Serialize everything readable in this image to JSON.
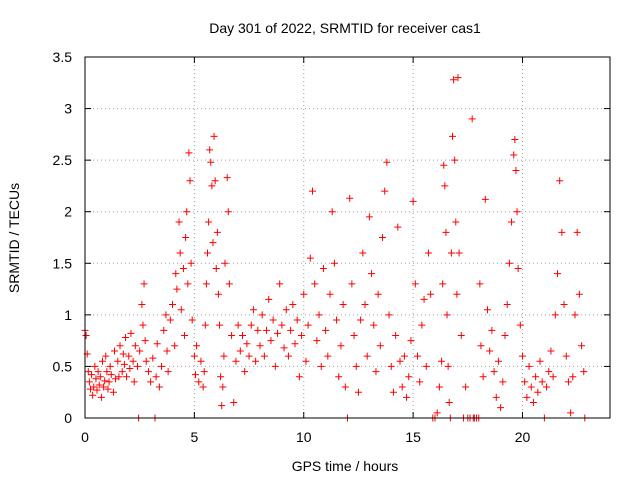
{
  "chart_data": {
    "type": "scatter",
    "title": "Day 301 of 2022, SRMTID for receiver cas1",
    "xlabel": "GPS time / hours",
    "ylabel": "SRMTID / TECUs",
    "xlim": [
      0,
      24
    ],
    "ylim": [
      0,
      3.5
    ],
    "xticks": [
      0,
      5,
      10,
      15,
      20
    ],
    "xtick_labels": [
      "0",
      "5",
      "10",
      "15",
      "20"
    ],
    "yticks": [
      0,
      0.5,
      1,
      1.5,
      2,
      2.5,
      3,
      3.5
    ],
    "ytick_labels": [
      "0",
      "0.5",
      "1",
      "1.5",
      "2",
      "2.5",
      "3",
      "3.5"
    ],
    "grid": true,
    "marker": "+",
    "color": "#ff0000",
    "series": [
      {
        "name": "cas1",
        "points": [
          [
            0.0,
            0.85
          ],
          [
            0.05,
            0.8
          ],
          [
            0.1,
            0.62
          ],
          [
            0.15,
            0.45
          ],
          [
            0.2,
            0.35
          ],
          [
            0.25,
            0.28
          ],
          [
            0.3,
            0.42
          ],
          [
            0.35,
            0.22
          ],
          [
            0.4,
            0.3
          ],
          [
            0.45,
            0.5
          ],
          [
            0.5,
            0.38
          ],
          [
            0.55,
            0.27
          ],
          [
            0.6,
            0.45
          ],
          [
            0.65,
            0.32
          ],
          [
            0.7,
            0.4
          ],
          [
            0.75,
            0.2
          ],
          [
            0.8,
            0.55
          ],
          [
            0.85,
            0.3
          ],
          [
            0.9,
            0.36
          ],
          [
            0.95,
            0.6
          ],
          [
            1.0,
            0.45
          ],
          [
            1.05,
            0.28
          ],
          [
            1.1,
            0.35
          ],
          [
            1.15,
            0.5
          ],
          [
            1.2,
            0.42
          ],
          [
            1.3,
            0.25
          ],
          [
            1.35,
            0.65
          ],
          [
            1.4,
            0.38
          ],
          [
            1.5,
            0.55
          ],
          [
            1.55,
            0.4
          ],
          [
            1.6,
            0.7
          ],
          [
            1.7,
            0.45
          ],
          [
            1.75,
            0.62
          ],
          [
            1.8,
            0.52
          ],
          [
            1.85,
            0.78
          ],
          [
            1.9,
            0.4
          ],
          [
            2.0,
            0.6
          ],
          [
            2.05,
            0.48
          ],
          [
            2.1,
            0.82
          ],
          [
            2.2,
            0.55
          ],
          [
            2.25,
            0.35
          ],
          [
            2.3,
            0.7
          ],
          [
            2.4,
            0.5
          ],
          [
            2.45,
            0.0
          ],
          [
            2.5,
            0.65
          ],
          [
            2.6,
            1.1
          ],
          [
            2.65,
            0.9
          ],
          [
            2.7,
            1.3
          ],
          [
            2.75,
            0.75
          ],
          [
            2.8,
            0.55
          ],
          [
            2.9,
            0.45
          ],
          [
            3.0,
            0.35
          ],
          [
            3.1,
            0.58
          ],
          [
            3.2,
            0.0
          ],
          [
            3.25,
            0.4
          ],
          [
            3.3,
            0.72
          ],
          [
            3.4,
            0.3
          ],
          [
            3.5,
            0.5
          ],
          [
            3.6,
            0.85
          ],
          [
            3.7,
            1.0
          ],
          [
            3.75,
            0.65
          ],
          [
            3.8,
            0.45
          ],
          [
            3.9,
            0.95
          ],
          [
            4.0,
            1.1
          ],
          [
            4.1,
            0.7
          ],
          [
            4.15,
            1.4
          ],
          [
            4.2,
            1.25
          ],
          [
            4.3,
            1.9
          ],
          [
            4.35,
            1.6
          ],
          [
            4.4,
            1.05
          ],
          [
            4.5,
            1.45
          ],
          [
            4.55,
            0.8
          ],
          [
            4.6,
            1.75
          ],
          [
            4.65,
            2.0
          ],
          [
            4.7,
            1.3
          ],
          [
            4.75,
            2.57
          ],
          [
            4.8,
            2.3
          ],
          [
            4.85,
            1.5
          ],
          [
            4.9,
            0.95
          ],
          [
            5.0,
            0.6
          ],
          [
            5.05,
            0.42
          ],
          [
            5.1,
            0.7
          ],
          [
            5.2,
            0.35
          ],
          [
            5.3,
            0.55
          ],
          [
            5.4,
            0.3
          ],
          [
            5.45,
            0.45
          ],
          [
            5.5,
            0.9
          ],
          [
            5.55,
            1.3
          ],
          [
            5.6,
            1.6
          ],
          [
            5.65,
            1.9
          ],
          [
            5.7,
            2.6
          ],
          [
            5.75,
            2.48
          ],
          [
            5.8,
            2.25
          ],
          [
            5.85,
            1.7
          ],
          [
            5.9,
            2.73
          ],
          [
            5.95,
            2.3
          ],
          [
            6.0,
            1.45
          ],
          [
            6.05,
            1.8
          ],
          [
            6.1,
            1.2
          ],
          [
            6.15,
            0.9
          ],
          [
            6.2,
            0.4
          ],
          [
            6.25,
            0.12
          ],
          [
            6.3,
            0.3
          ],
          [
            6.35,
            0.6
          ],
          [
            6.4,
            1.5
          ],
          [
            6.5,
            2.33
          ],
          [
            6.55,
            2.0
          ],
          [
            6.6,
            1.3
          ],
          [
            6.7,
            0.8
          ],
          [
            6.8,
            0.15
          ],
          [
            6.9,
            0.55
          ],
          [
            7.0,
            0.9
          ],
          [
            7.1,
            0.65
          ],
          [
            7.2,
            0.8
          ],
          [
            7.3,
            0.45
          ],
          [
            7.4,
            0.72
          ],
          [
            7.5,
            0.6
          ],
          [
            7.6,
            0.9
          ],
          [
            7.7,
            1.05
          ],
          [
            7.8,
            0.55
          ],
          [
            7.9,
            0.85
          ],
          [
            8.0,
            0.7
          ],
          [
            8.1,
            1.0
          ],
          [
            8.2,
            0.6
          ],
          [
            8.3,
            0.85
          ],
          [
            8.4,
            1.15
          ],
          [
            8.5,
            0.75
          ],
          [
            8.6,
            0.95
          ],
          [
            8.7,
            0.5
          ],
          [
            8.8,
            0.82
          ],
          [
            8.9,
            1.3
          ],
          [
            9.0,
            0.9
          ],
          [
            9.1,
            0.68
          ],
          [
            9.2,
            1.05
          ],
          [
            9.3,
            0.6
          ],
          [
            9.4,
            0.85
          ],
          [
            9.5,
            1.1
          ],
          [
            9.6,
            0.72
          ],
          [
            9.7,
            0.95
          ],
          [
            9.8,
            0.4
          ],
          [
            9.9,
            0.8
          ],
          [
            10.0,
            1.2
          ],
          [
            10.1,
            0.55
          ],
          [
            10.2,
            0.9
          ],
          [
            10.3,
            1.55
          ],
          [
            10.4,
            2.2
          ],
          [
            10.5,
            1.3
          ],
          [
            10.6,
            0.75
          ],
          [
            10.7,
            1.0
          ],
          [
            10.8,
            0.5
          ],
          [
            10.9,
            1.45
          ],
          [
            11.0,
            0.85
          ],
          [
            11.1,
            0.6
          ],
          [
            11.2,
            1.2
          ],
          [
            11.3,
            2.0
          ],
          [
            11.4,
            1.5
          ],
          [
            11.5,
            0.95
          ],
          [
            11.6,
            0.4
          ],
          [
            11.7,
            0.7
          ],
          [
            11.8,
            1.1
          ],
          [
            11.9,
            0.3
          ],
          [
            12.0,
            0.0
          ],
          [
            12.1,
            2.13
          ],
          [
            12.2,
            1.3
          ],
          [
            12.3,
            0.8
          ],
          [
            12.4,
            0.5
          ],
          [
            12.5,
            0.25
          ],
          [
            12.6,
            0.95
          ],
          [
            12.7,
            1.6
          ],
          [
            12.8,
            1.1
          ],
          [
            12.9,
            0.6
          ],
          [
            13.0,
            1.95
          ],
          [
            13.1,
            1.4
          ],
          [
            13.2,
            0.9
          ],
          [
            13.3,
            0.45
          ],
          [
            13.4,
            1.2
          ],
          [
            13.5,
            0.7
          ],
          [
            13.6,
            1.75
          ],
          [
            13.7,
            2.2
          ],
          [
            13.8,
            2.48
          ],
          [
            13.9,
            1.0
          ],
          [
            14.0,
            0.5
          ],
          [
            14.1,
            0.25
          ],
          [
            14.2,
            0.8
          ],
          [
            14.3,
            1.85
          ],
          [
            14.4,
            0.55
          ],
          [
            14.5,
            0.3
          ],
          [
            14.6,
            0.6
          ],
          [
            14.7,
            0.2
          ],
          [
            14.8,
            0.4
          ],
          [
            14.9,
            0.75
          ],
          [
            15.0,
            2.1
          ],
          [
            15.1,
            1.3
          ],
          [
            15.2,
            0.6
          ],
          [
            15.3,
            0.35
          ],
          [
            15.4,
            0.9
          ],
          [
            15.5,
            1.15
          ],
          [
            15.6,
            0.5
          ],
          [
            15.7,
            1.6
          ],
          [
            15.8,
            1.2
          ],
          [
            15.9,
            0.0
          ],
          [
            16.0,
            0.0
          ],
          [
            16.1,
            0.05
          ],
          [
            16.2,
            0.3
          ],
          [
            16.3,
            0.55
          ],
          [
            16.35,
            1.3
          ],
          [
            16.4,
            2.45
          ],
          [
            16.45,
            2.25
          ],
          [
            16.5,
            1.8
          ],
          [
            16.55,
            1.0
          ],
          [
            16.6,
            0.5
          ],
          [
            16.65,
            0.15
          ],
          [
            16.7,
            0.0
          ],
          [
            16.75,
            1.6
          ],
          [
            16.8,
            2.73
          ],
          [
            16.85,
            3.28
          ],
          [
            16.9,
            2.5
          ],
          [
            16.95,
            1.9
          ],
          [
            17.0,
            1.2
          ],
          [
            17.05,
            3.3
          ],
          [
            17.1,
            1.6
          ],
          [
            17.2,
            0.8
          ],
          [
            17.3,
            0.0
          ],
          [
            17.4,
            0.3
          ],
          [
            17.5,
            0.0
          ],
          [
            17.6,
            0.0
          ],
          [
            17.7,
            2.9
          ],
          [
            17.75,
            0.0
          ],
          [
            17.8,
            0.0
          ],
          [
            17.9,
            0.0
          ],
          [
            18.0,
            0.0
          ],
          [
            18.05,
            1.3
          ],
          [
            18.1,
            0.7
          ],
          [
            18.2,
            0.4
          ],
          [
            18.3,
            2.12
          ],
          [
            18.4,
            1.05
          ],
          [
            18.5,
            0.65
          ],
          [
            18.6,
            0.85
          ],
          [
            18.7,
            0.45
          ],
          [
            18.8,
            0.2
          ],
          [
            18.9,
            0.55
          ],
          [
            19.0,
            0.1
          ],
          [
            19.1,
            0.35
          ],
          [
            19.2,
            0.8
          ],
          [
            19.3,
            1.1
          ],
          [
            19.4,
            1.5
          ],
          [
            19.5,
            1.9
          ],
          [
            19.6,
            2.55
          ],
          [
            19.65,
            2.7
          ],
          [
            19.7,
            2.4
          ],
          [
            19.75,
            2.0
          ],
          [
            19.8,
            1.45
          ],
          [
            19.9,
            0.9
          ],
          [
            20.0,
            0.6
          ],
          [
            20.1,
            0.35
          ],
          [
            20.2,
            0.2
          ],
          [
            20.3,
            0.5
          ],
          [
            20.4,
            0.3
          ],
          [
            20.5,
            0.15
          ],
          [
            20.6,
            0.4
          ],
          [
            20.7,
            0.25
          ],
          [
            20.8,
            0.55
          ],
          [
            20.9,
            0.35
          ],
          [
            21.0,
            0.0
          ],
          [
            21.1,
            0.3
          ],
          [
            21.2,
            0.45
          ],
          [
            21.3,
            0.65
          ],
          [
            21.4,
            0.4
          ],
          [
            21.5,
            1.0
          ],
          [
            21.6,
            1.4
          ],
          [
            21.7,
            2.3
          ],
          [
            21.8,
            1.8
          ],
          [
            21.9,
            1.1
          ],
          [
            22.0,
            0.6
          ],
          [
            22.1,
            0.35
          ],
          [
            22.2,
            0.05
          ],
          [
            22.3,
            0.4
          ],
          [
            22.4,
            1.0
          ],
          [
            22.5,
            1.8
          ],
          [
            22.6,
            1.2
          ],
          [
            22.7,
            0.7
          ],
          [
            22.8,
            0.45
          ],
          [
            22.85,
            0.0
          ]
        ]
      }
    ]
  }
}
